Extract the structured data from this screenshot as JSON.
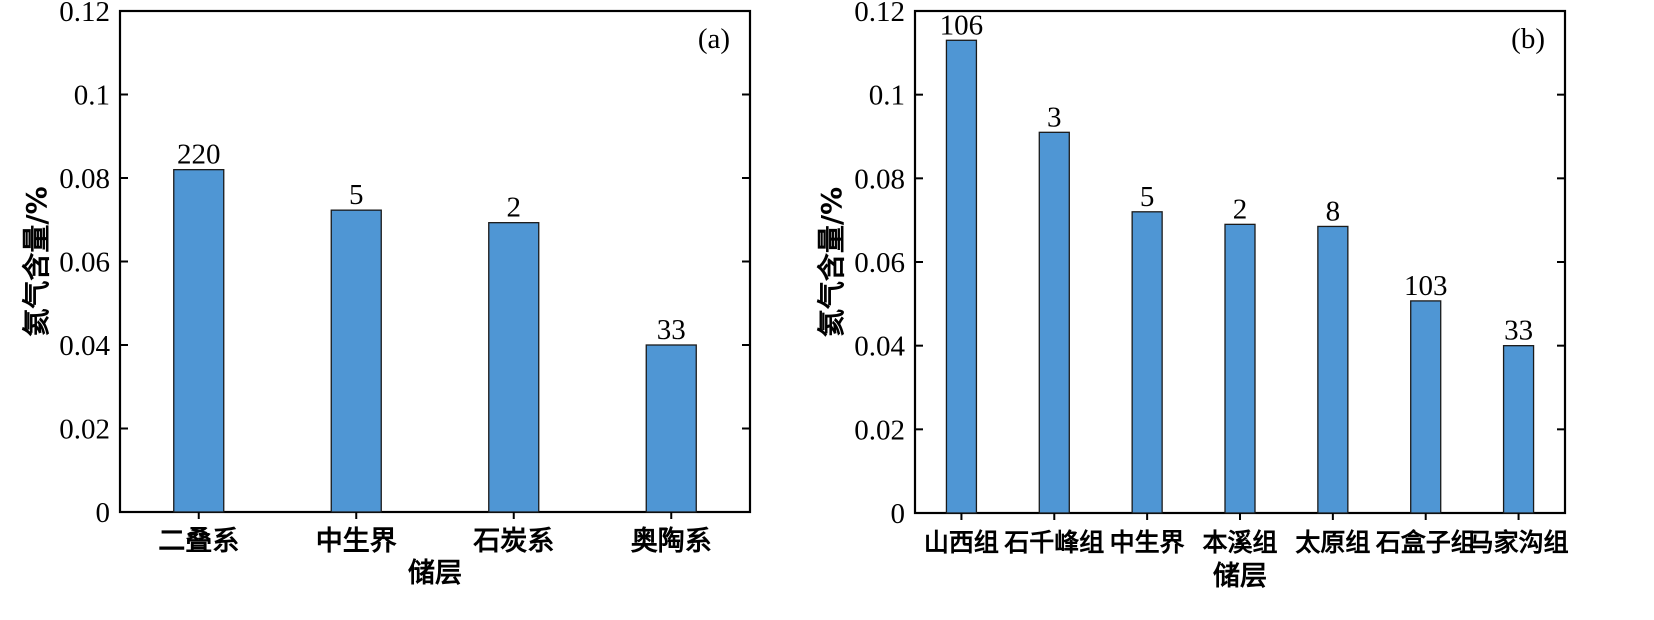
{
  "chart_data": [
    {
      "type": "bar",
      "panel_label": "(a)",
      "xlabel": "储层",
      "ylabel": "氦气含量/%",
      "ylim": [
        0,
        0.12
      ],
      "yticks": [
        "0",
        "0.02",
        "0.04",
        "0.06",
        "0.08",
        "0.1",
        "0.12"
      ],
      "categories": [
        "二叠系",
        "中生界",
        "石炭系",
        "奥陶系"
      ],
      "values": [
        0.082,
        0.0723,
        0.0693,
        0.04
      ],
      "bar_labels": [
        "220",
        "5",
        "2",
        "33"
      ],
      "bar_color": "#4f96d4",
      "grid": false,
      "legend": "none"
    },
    {
      "type": "bar",
      "panel_label": "(b)",
      "xlabel": "储层",
      "ylabel": "氦气含量/%",
      "ylim": [
        0,
        0.12
      ],
      "yticks": [
        "0",
        "0.02",
        "0.04",
        "0.06",
        "0.08",
        "0.1",
        "0.12"
      ],
      "categories": [
        "山西组",
        "石千峰组",
        "中生界",
        "本溪组",
        "太原组",
        "石盒子组",
        "马家沟组"
      ],
      "values": [
        0.113,
        0.091,
        0.072,
        0.069,
        0.0685,
        0.0507,
        0.04
      ],
      "bar_labels": [
        "106",
        "3",
        "5",
        "2",
        "8",
        "103",
        "33"
      ],
      "bar_color": "#4f96d4",
      "grid": false,
      "legend": "none"
    }
  ]
}
